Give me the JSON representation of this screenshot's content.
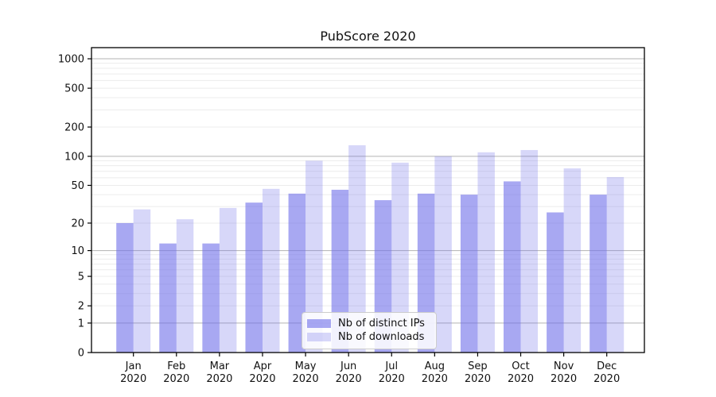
{
  "chart_data": {
    "type": "bar",
    "title": "PubScore 2020",
    "categories": [
      "Jan",
      "Feb",
      "Mar",
      "Apr",
      "May",
      "Jun",
      "Jul",
      "Aug",
      "Sep",
      "Oct",
      "Nov",
      "Dec"
    ],
    "category_year": "2020",
    "series": [
      {
        "name": "Nb of distinct IPs",
        "color": "rgba(110,110,233,0.60)",
        "values": [
          20,
          12,
          12,
          33,
          41,
          45,
          35,
          41,
          40,
          55,
          26,
          40
        ]
      },
      {
        "name": "Nb of downloads",
        "color": "rgba(110,110,233,0.28)",
        "values": [
          28,
          22,
          29,
          46,
          90,
          130,
          86,
          100,
          110,
          116,
          75,
          61
        ]
      }
    ],
    "xlabel": "",
    "ylabel": "",
    "yaxis": {
      "scale": "symlog",
      "tick_values": [
        1000,
        500,
        200,
        100,
        50,
        20,
        10,
        5,
        2,
        1,
        0
      ],
      "tick_labels": [
        "1000",
        "500",
        "200",
        "100",
        "50",
        "20",
        "10",
        "5",
        "2",
        "1",
        "0"
      ],
      "max": 1300,
      "major_gridlines": [
        1,
        10,
        100,
        1000
      ],
      "minor_gridline_decades": [
        1,
        10,
        100
      ]
    },
    "grid": true,
    "legend_position": "lower center",
    "colors": {
      "major_grid": "#b3b3b3",
      "minor_grid": "#ececec",
      "spine": "#000000",
      "tick_text": "#111111"
    }
  }
}
